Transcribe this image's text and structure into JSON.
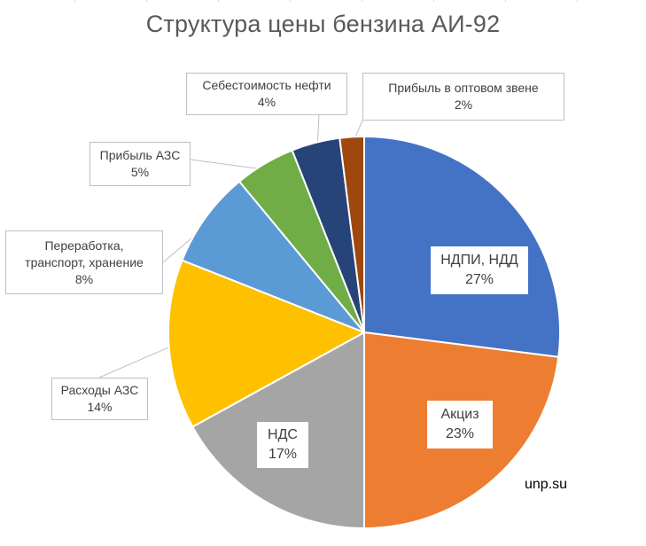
{
  "chart_data": {
    "type": "pie",
    "title": "Структура цены бензина АИ-92",
    "slices": [
      {
        "label": "НДПИ, НДД",
        "value": 27,
        "value_label": "27%",
        "color": "#4472c4"
      },
      {
        "label": "Акциз",
        "value": 23,
        "value_label": "23%",
        "color": "#ed7d31"
      },
      {
        "label": "НДС",
        "value": 17,
        "value_label": "17%",
        "color": "#a5a5a5"
      },
      {
        "label": "Расходы АЗС",
        "value": 14,
        "value_label": "14%",
        "color": "#ffc000"
      },
      {
        "label": "Переработка, транспорт, хранение",
        "label_lines": [
          "Переработка,",
          "транспорт, хранение"
        ],
        "value": 8,
        "value_label": "8%",
        "color": "#5b9bd5"
      },
      {
        "label": "Прибыль АЗС",
        "value": 5,
        "value_label": "5%",
        "color": "#70ad47"
      },
      {
        "label": "Себестоимость нефти",
        "value": 4,
        "value_label": "4%",
        "color": "#264478"
      },
      {
        "label": "Прибыль в оптовом звене",
        "value": 2,
        "value_label": "2%",
        "color": "#9e480e"
      }
    ]
  },
  "watermark": "unp.su"
}
